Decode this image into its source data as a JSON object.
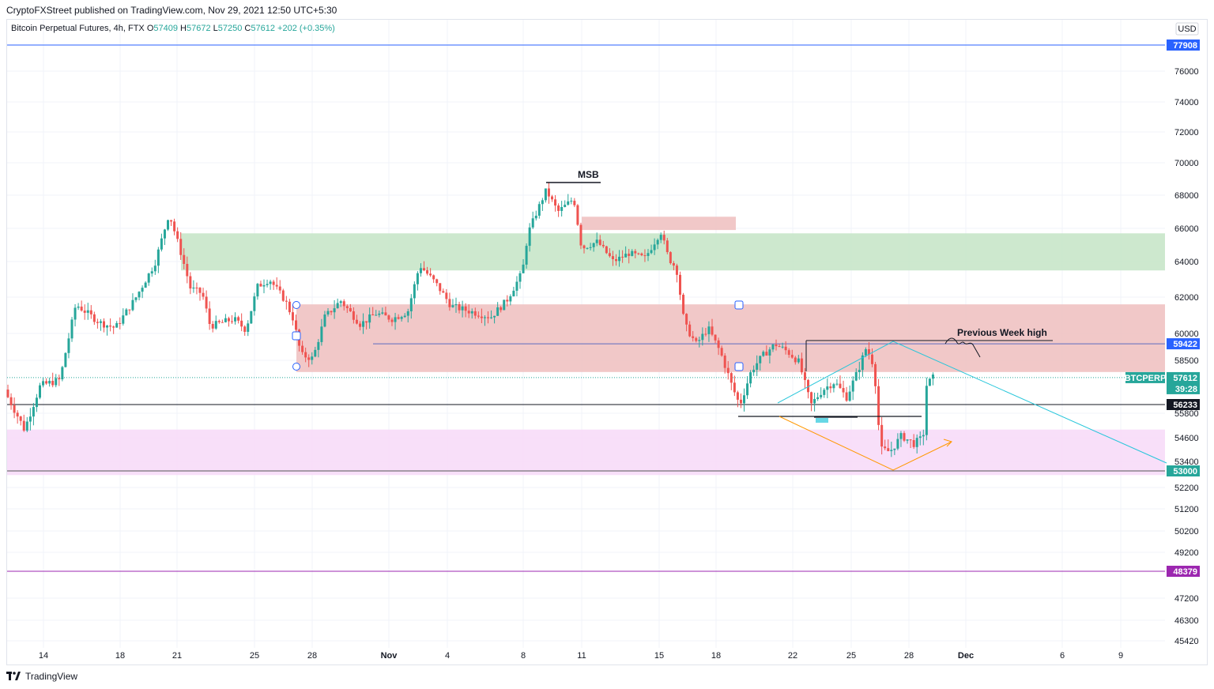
{
  "header": {
    "published": "CryptoFXStreet published on TradingView.com, Nov 29, 2021 12:50 UTC+5:30"
  },
  "symbol": {
    "name": "Bitcoin Perpetual Futures, 4h, FTX",
    "o_label": "O",
    "o": "57409",
    "h_label": "H",
    "h": "57672",
    "l_label": "L",
    "l": "57250",
    "c_label": "C",
    "c": "57612",
    "change": "+202 (+0.35%)"
  },
  "currency": "USD",
  "colors": {
    "up": "#26a69a",
    "down": "#ef5350",
    "blue_line": "#2962ff",
    "purple_line": "#9c27b0",
    "green_zone": "#c8e6c9",
    "red_zone": "#f0c2c2",
    "pink_zone": "#f7dbf8",
    "cyan": "#26c6da",
    "orange": "#ff9800",
    "indigo_line": "#5c6bc0"
  },
  "chart_data": {
    "type": "candlestick",
    "x_ticks": [
      "14",
      "18",
      "21",
      "25",
      "28",
      "Nov",
      "4",
      "8",
      "11",
      "15",
      "18",
      "22",
      "25",
      "28",
      "Dec",
      "6",
      "9"
    ],
    "y_ticks": [
      "76000",
      "74000",
      "72000",
      "70000",
      "68000",
      "66000",
      "64000",
      "62000",
      "60000",
      "58500",
      "55800",
      "54600",
      "53400",
      "52200",
      "51200",
      "50200",
      "49200",
      "47200",
      "46300",
      "45420"
    ],
    "y_range": [
      45000,
      79000
    ],
    "price_labels": [
      {
        "value": "77908",
        "price": 77908,
        "color": "#2962ff"
      },
      {
        "value": "59422",
        "price": 59422,
        "color": "#2962ff"
      },
      {
        "value": "56233",
        "price": 56233,
        "color": "#131722"
      },
      {
        "value": "53000",
        "price": 53000,
        "color": "#26a69a"
      },
      {
        "value": "48379",
        "price": 48379,
        "color": "#9c27b0"
      }
    ],
    "current_price": {
      "symbol": "BTCPERP",
      "value": "57612",
      "countdown": "39:28",
      "price": 57612
    },
    "annotations": [
      "MSB",
      "Previous Week high"
    ],
    "zones": [
      {
        "type": "demand",
        "low": 63500,
        "high": 65700
      },
      {
        "type": "supply",
        "low": 65900,
        "high": 66700
      },
      {
        "type": "supply",
        "low": 57900,
        "high": 61600
      },
      {
        "type": "demand",
        "low": 52800,
        "high": 55000
      }
    ],
    "key_levels": [
      {
        "name": "Previous Week high",
        "price": 59422
      },
      {
        "name": "MSB",
        "price": 68900
      }
    ]
  }
}
